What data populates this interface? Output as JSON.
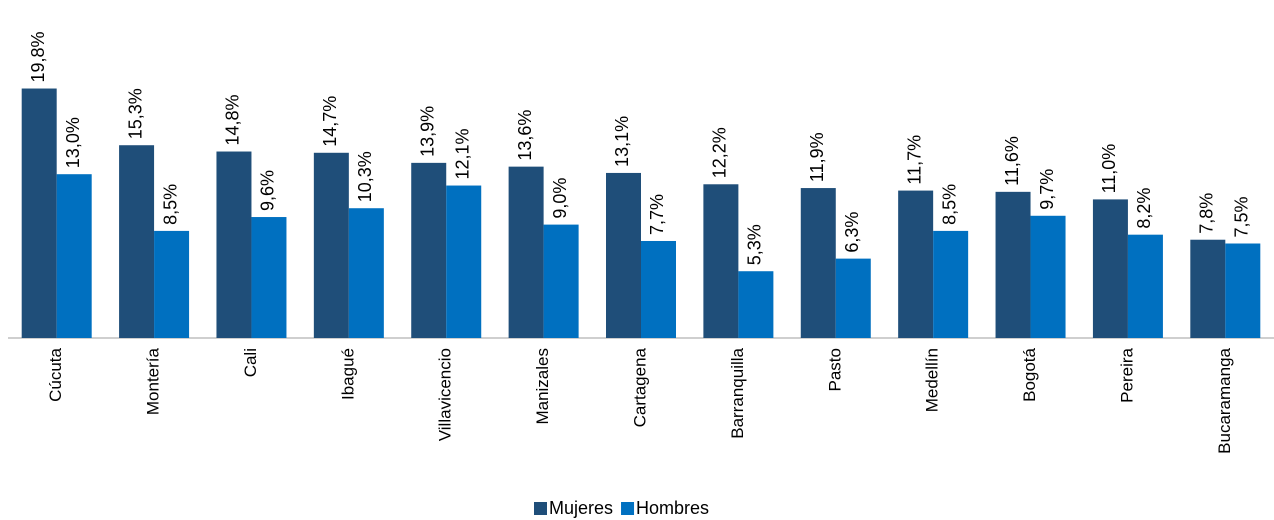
{
  "chart_data": {
    "type": "bar",
    "categories": [
      "Cúcuta",
      "Montería",
      "Cali",
      "Ibagué",
      "Villavicencio",
      "Manizales",
      "Cartagena",
      "Barranquilla",
      "Pasto",
      "Medellín",
      "Bogotá",
      "Pereira",
      "Bucaramanga"
    ],
    "series": [
      {
        "name": "Mujeres",
        "color": "#1f4e79",
        "label_color": "#262626",
        "values": [
          19.8,
          15.3,
          14.8,
          14.7,
          13.9,
          13.6,
          13.1,
          12.2,
          11.9,
          11.7,
          11.6,
          11.0,
          7.8
        ],
        "value_labels": [
          "19,8%",
          "15,3%",
          "14,8%",
          "14,7%",
          "13,9%",
          "13,6%",
          "13,1%",
          "12,2%",
          "11,9%",
          "11,7%",
          "11,6%",
          "11,0%",
          "7,8%"
        ]
      },
      {
        "name": "Hombres",
        "color": "#0070c0",
        "label_color": "#0070c0",
        "values": [
          13.0,
          8.5,
          9.6,
          10.3,
          12.1,
          9.0,
          7.7,
          5.3,
          6.3,
          8.5,
          9.7,
          8.2,
          7.5
        ],
        "value_labels": [
          "13,0%",
          "8,5%",
          "9,6%",
          "10,3%",
          "12,1%",
          "9,0%",
          "7,7%",
          "5,3%",
          "6,3%",
          "8,5%",
          "9,7%",
          "8,2%",
          "7,5%"
        ]
      }
    ],
    "legend": "bottom"
  }
}
